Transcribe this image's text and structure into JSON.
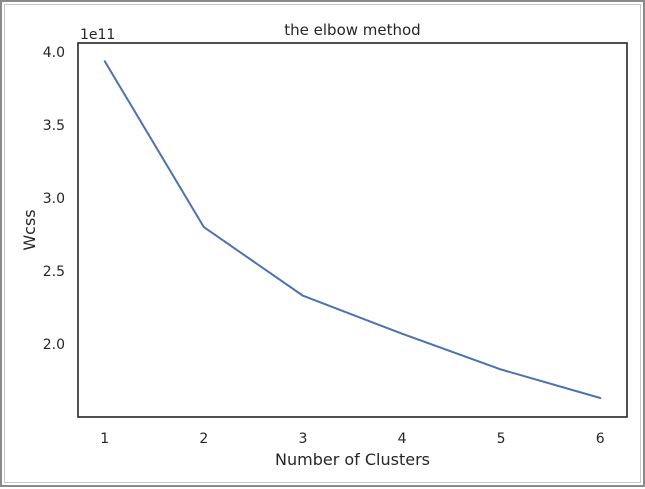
{
  "chart_data": {
    "type": "line",
    "title": "the elbow method",
    "xlabel": "Number of Clusters",
    "ylabel": "Wcss",
    "offset_text": "1e11",
    "x": [
      1,
      2,
      3,
      4,
      5,
      6
    ],
    "series": [
      {
        "values": [
          393500000000.0,
          280000000000.0,
          233000000000.0,
          207000000000.0,
          182500000000.0,
          163000000000.0
        ],
        "color": "#4C72B0"
      }
    ],
    "xlim": [
      0.73,
      6.27
    ],
    "ylim": [
      150000000000.0,
      406000000000.0
    ],
    "xticks": [
      1,
      2,
      3,
      4,
      5,
      6
    ],
    "xtick_labels": [
      "1",
      "2",
      "3",
      "4",
      "5",
      "6"
    ],
    "yticks": [
      200000000000.0,
      250000000000.0,
      300000000000.0,
      350000000000.0,
      400000000000.0
    ],
    "ytick_labels": [
      "2.0",
      "2.5",
      "3.0",
      "3.5",
      "4.0"
    ],
    "grid": false,
    "style": {
      "background": "#ffffff",
      "frame_color": "#262626",
      "text_color": "#262626"
    }
  }
}
